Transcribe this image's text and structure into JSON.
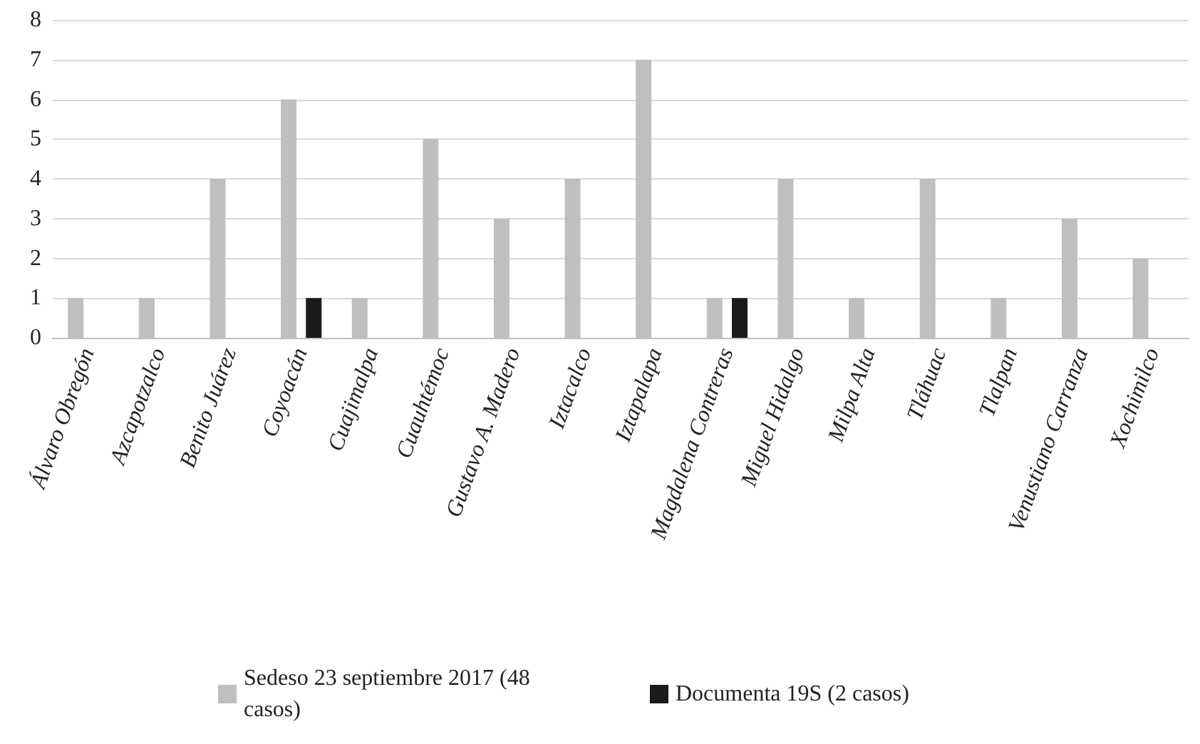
{
  "chart_data": {
    "type": "bar",
    "categories": [
      "Álvaro Obregón",
      "Azcapotzalco",
      "Benito Juárez",
      "Coyoacán",
      "Cuajimalpa",
      "Cuauhtémoc",
      "Gustavo A. Madero",
      "Iztacalco",
      "Iztapalapa",
      "Magdalena Contreras",
      "Miguel Hidalgo",
      "Milpa Alta",
      "Tláhuac",
      "Tlalpan",
      "Venustiano Carranza",
      "Xochimilco"
    ],
    "series": [
      {
        "name": "Sedeso 23 septiembre 2017 (48 casos)",
        "color": "#bfbfbf",
        "values": [
          1,
          1,
          4,
          6,
          1,
          5,
          3,
          4,
          7,
          1,
          4,
          1,
          4,
          1,
          3,
          2
        ]
      },
      {
        "name": "Documenta 19S (2 casos)",
        "color": "#1a1a1a",
        "values": [
          0,
          0,
          0,
          1,
          0,
          0,
          0,
          0,
          0,
          1,
          0,
          0,
          0,
          0,
          0,
          0
        ]
      }
    ],
    "ylim": [
      0,
      8
    ],
    "yticks": [
      0,
      1,
      2,
      3,
      4,
      5,
      6,
      7,
      8
    ],
    "grid": "y",
    "legend": "bottom"
  }
}
